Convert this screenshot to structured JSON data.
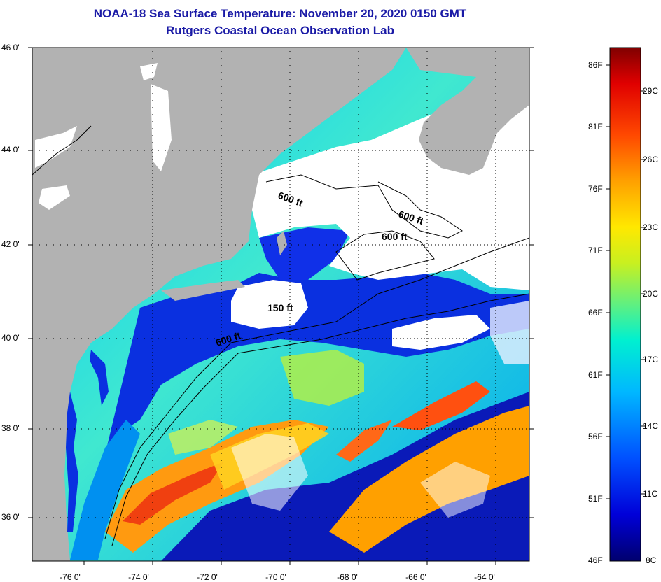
{
  "header": {
    "title": "NOAA-18 Sea Surface Temperature:  November 20, 2020 0150 GMT",
    "subtitle": "Rutgers Coastal Ocean Observation Lab"
  },
  "axes": {
    "latitude_labels": [
      "46 0'",
      "44 0'",
      "42 0'",
      "40 0'",
      "38 0'",
      "36 0'"
    ],
    "longitude_labels": [
      "-76 0'",
      "-74 0'",
      "-72 0'",
      "-70 0'",
      "-68 0'",
      "-66 0'",
      "-64 0'"
    ]
  },
  "isobaths": [
    "600 ft",
    "600 ft",
    "600 ft",
    "150 ft",
    "600 ft"
  ],
  "colorbar": {
    "fahrenheit_labels": [
      "86F",
      "81F",
      "76F",
      "71F",
      "66F",
      "61F",
      "56F",
      "51F",
      "46F"
    ],
    "celsius_labels": [
      "29C",
      "26C",
      "23C",
      "20C",
      "17C",
      "14C",
      "11C",
      "8C"
    ],
    "colors": [
      "#00006e",
      "#0000d8",
      "#0050ff",
      "#00b8ff",
      "#00f0d0",
      "#60f080",
      "#c8f020",
      "#ffe800",
      "#ffa000",
      "#ff4800",
      "#e00000",
      "#800000"
    ]
  },
  "colors": {
    "land": "#b2b2b2",
    "cloud": "#ffffff",
    "title": "#1a1aa6"
  }
}
